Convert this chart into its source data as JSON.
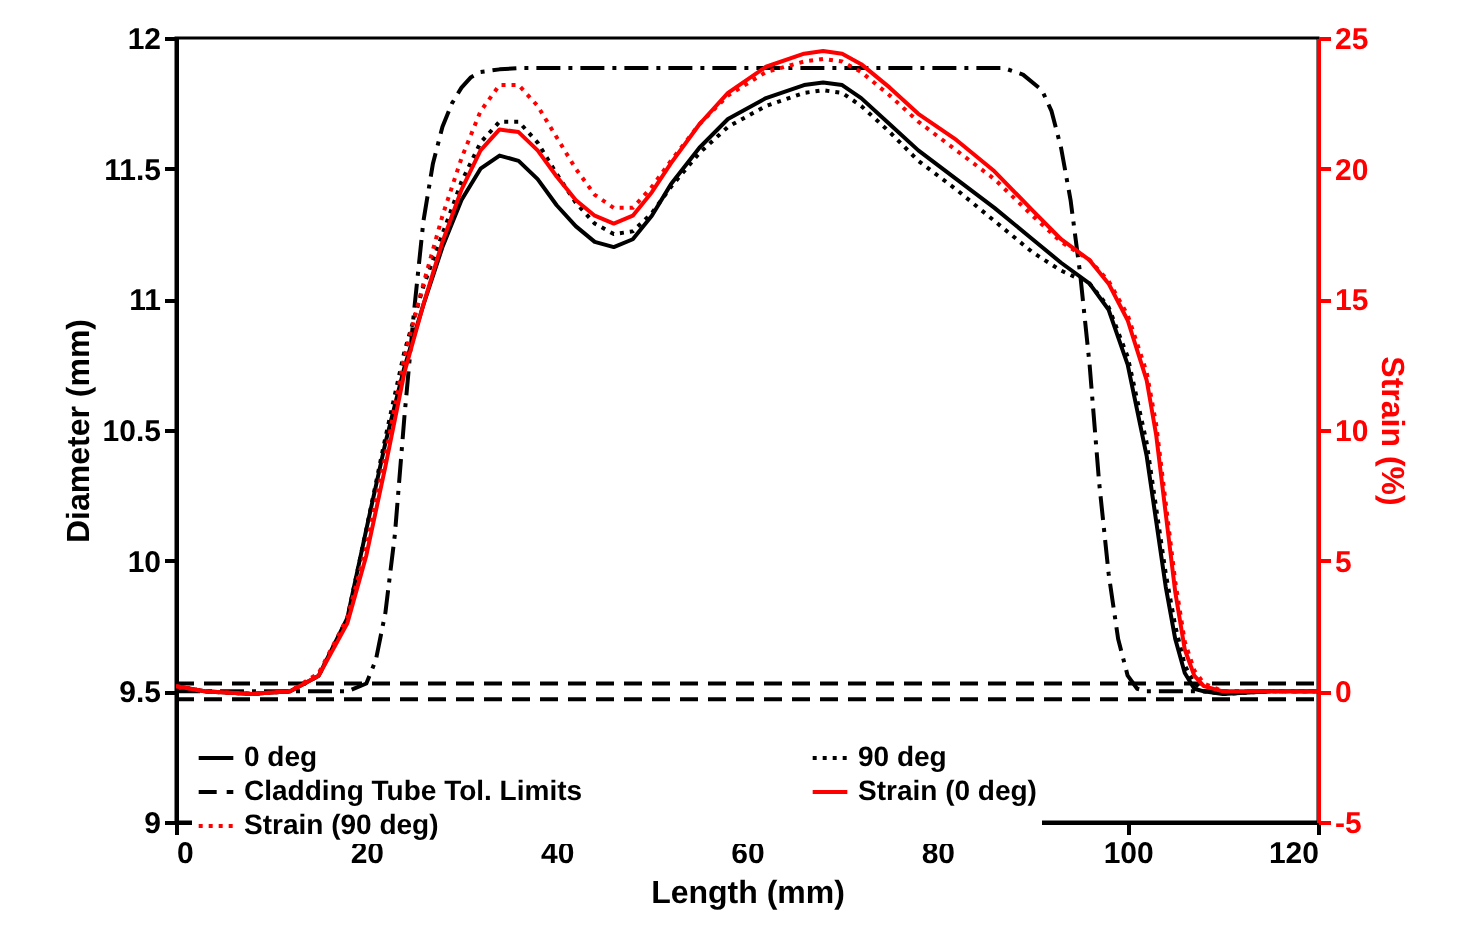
{
  "chart_data": {
    "type": "line",
    "xlabel": "Length (mm)",
    "ylabel": "Diameter (mm)",
    "y2label": "Strain (%)",
    "xlim": [
      0,
      120
    ],
    "xticks": [
      0,
      20,
      40,
      60,
      80,
      100,
      120
    ],
    "ylim": [
      9,
      12
    ],
    "yticks": [
      9,
      9.5,
      10,
      10.5,
      11,
      11.5,
      12
    ],
    "y2lim": [
      -5,
      25
    ],
    "y2ticks": [
      -5,
      0,
      5,
      10,
      15,
      20,
      25
    ],
    "legend": "bottom left",
    "marker": "none",
    "x": [
      0,
      3,
      8,
      12,
      15,
      18,
      20,
      22,
      24,
      26,
      28,
      30,
      32,
      34,
      36,
      38,
      40,
      42,
      44,
      46,
      48,
      50,
      52,
      55,
      58,
      62,
      66,
      68,
      70,
      72,
      75,
      78,
      82,
      86,
      90,
      93,
      96,
      98,
      100,
      102,
      103,
      104,
      105,
      106,
      107,
      108,
      110,
      115,
      120
    ],
    "series": [
      {
        "name": "0 deg",
        "color": "#000000",
        "line_style": "solid",
        "values": [
          9.52,
          9.5,
          9.49,
          9.5,
          9.56,
          9.78,
          10.12,
          10.45,
          10.74,
          10.98,
          11.2,
          11.38,
          11.5,
          11.55,
          11.53,
          11.46,
          11.36,
          11.28,
          11.22,
          11.2,
          11.23,
          11.32,
          11.44,
          11.58,
          11.69,
          11.77,
          11.82,
          11.83,
          11.82,
          11.77,
          11.67,
          11.57,
          11.46,
          11.35,
          11.23,
          11.14,
          11.06,
          10.96,
          10.75,
          10.4,
          10.15,
          9.9,
          9.7,
          9.57,
          9.51,
          9.5,
          9.49,
          9.5,
          9.5
        ]
      },
      {
        "name": "90 deg",
        "color": "#000000",
        "line_style": "dotted",
        "values": [
          9.52,
          9.5,
          9.49,
          9.5,
          9.56,
          9.78,
          10.12,
          10.47,
          10.8,
          11.05,
          11.25,
          11.45,
          11.6,
          11.68,
          11.68,
          11.6,
          11.48,
          11.37,
          11.29,
          11.25,
          11.26,
          11.33,
          11.43,
          11.56,
          11.66,
          11.74,
          11.79,
          11.8,
          11.79,
          11.74,
          11.64,
          11.53,
          11.42,
          11.3,
          11.18,
          11.11,
          11.06,
          10.97,
          10.78,
          10.45,
          10.2,
          9.95,
          9.75,
          9.6,
          9.53,
          9.5,
          9.49,
          9.5,
          9.5
        ]
      },
      {
        "name": "Cladding Tube Tol. Limits",
        "color": "#000000",
        "line_style": "dashed",
        "x": [
          0,
          120
        ],
        "values": [
          9.53,
          9.53
        ]
      },
      {
        "color": "#000000",
        "line_style": "dashed",
        "x": [
          0,
          120
        ],
        "values": [
          9.47,
          9.47
        ]
      },
      {
        "color": "#000000",
        "line_style": "dashdot",
        "x": [
          0,
          18,
          20,
          21,
          22,
          23,
          24,
          25,
          26,
          27,
          28,
          29,
          30,
          31,
          32,
          34,
          36,
          40,
          87,
          89,
          91,
          92,
          93,
          94,
          95,
          96,
          97,
          98,
          99,
          100,
          101,
          102,
          120
        ],
        "values": [
          9.5,
          9.5,
          9.53,
          9.62,
          9.8,
          10.1,
          10.55,
          10.95,
          11.3,
          11.52,
          11.66,
          11.75,
          11.81,
          11.85,
          11.87,
          11.88,
          11.885,
          11.885,
          11.885,
          11.86,
          11.8,
          11.72,
          11.58,
          11.38,
          11.1,
          10.75,
          10.3,
          9.95,
          9.7,
          9.56,
          9.51,
          9.5,
          9.5
        ]
      },
      {
        "name": "Strain (0 deg)",
        "color": "#ff0000",
        "line_style": "solid",
        "axis": "y2",
        "values": [
          0.2,
          0,
          -0.1,
          0,
          0.6,
          2.6,
          5.2,
          8.6,
          12.2,
          14.8,
          17.2,
          19.2,
          20.7,
          21.5,
          21.4,
          20.7,
          19.7,
          18.8,
          18.2,
          17.9,
          18.2,
          19.1,
          20.2,
          21.7,
          22.9,
          23.9,
          24.4,
          24.5,
          24.4,
          24.0,
          23.1,
          22.1,
          21.1,
          19.9,
          18.4,
          17.3,
          16.5,
          15.6,
          14.2,
          11.9,
          9.8,
          6.8,
          3.8,
          1.6,
          0.6,
          0.2,
          0,
          0,
          0
        ]
      },
      {
        "name": "Strain (90 deg)",
        "color": "#ff0000",
        "line_style": "dotted",
        "axis": "y2",
        "values": [
          0.2,
          0,
          -0.1,
          0,
          0.7,
          2.8,
          5.5,
          9,
          12.8,
          15.6,
          18.2,
          20.4,
          22.2,
          23.2,
          23.2,
          22.4,
          21.2,
          20.0,
          19.0,
          18.5,
          18.5,
          19.3,
          20.3,
          21.7,
          22.8,
          23.7,
          24.1,
          24.2,
          24.1,
          23.7,
          22.8,
          21.8,
          20.7,
          19.6,
          18.2,
          17.2,
          16.5,
          15.7,
          14.4,
          12.2,
          10.2,
          7.2,
          4.2,
          1.9,
          0.8,
          0.3,
          0,
          0,
          0
        ]
      }
    ]
  }
}
